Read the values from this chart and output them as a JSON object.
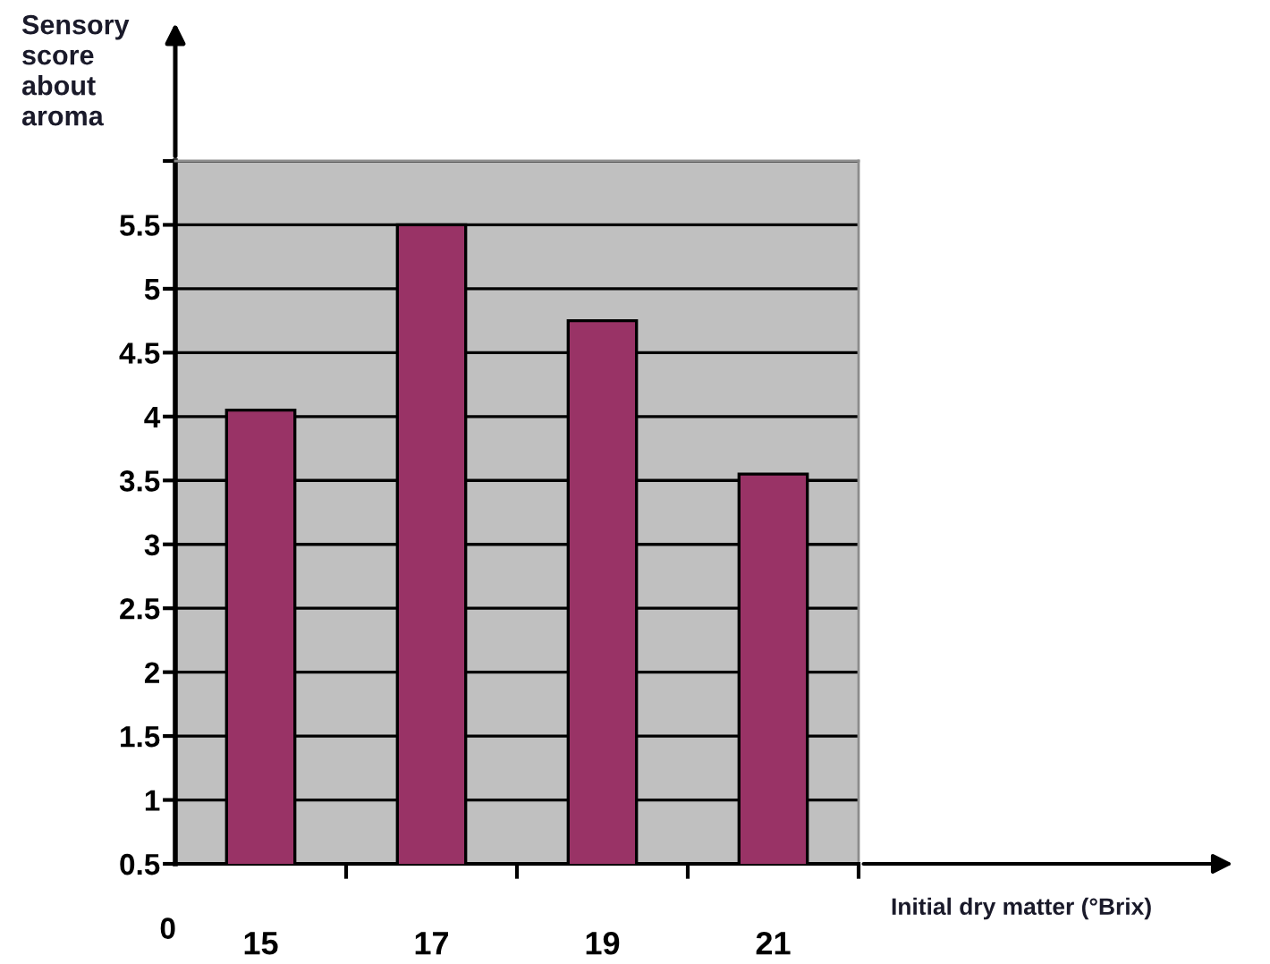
{
  "chart_data": {
    "type": "bar",
    "xlabel": "Initial dry matter (°Brix)",
    "ylabel": "Sensory score about aroma",
    "annotations": [
      "0"
    ],
    "categories": [
      "15",
      "17",
      "19",
      "21"
    ],
    "values": [
      4.05,
      5.5,
      4.75,
      3.55
    ],
    "color": "#993366",
    "ylim": [
      0.5,
      6
    ],
    "yticks": [
      0.5,
      1,
      1.5,
      2,
      2.5,
      3,
      3.5,
      4,
      4.5,
      5,
      5.5,
      {
        "value": 6,
        "label": null
      }
    ],
    "grid": "y"
  }
}
